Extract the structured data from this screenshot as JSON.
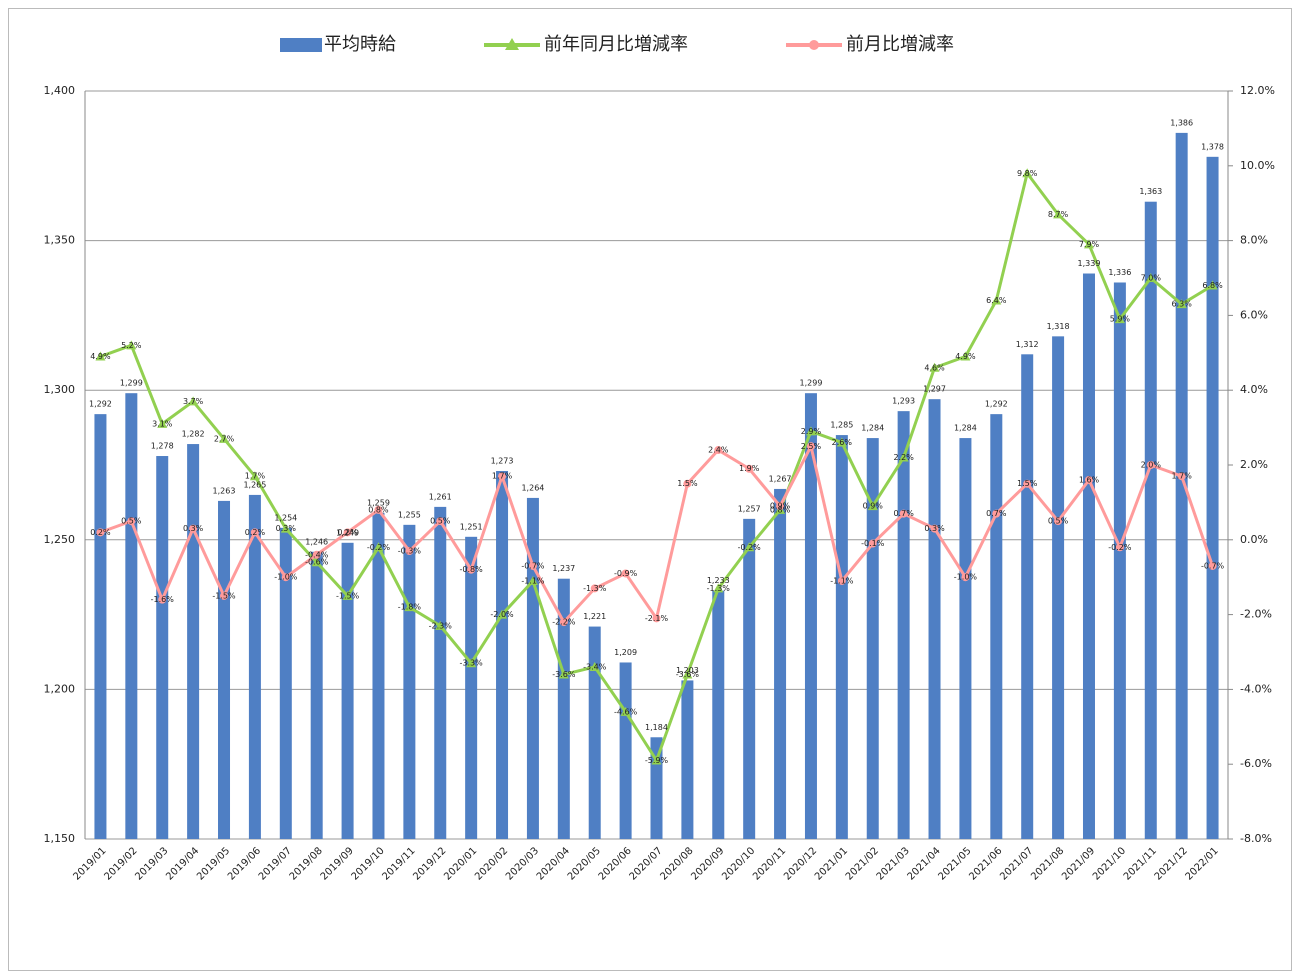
{
  "chart_data": {
    "type": "bar-line",
    "categories": [
      "2019/01",
      "2019/02",
      "2019/03",
      "2019/04",
      "2019/05",
      "2019/06",
      "2019/07",
      "2019/08",
      "2019/09",
      "2019/10",
      "2019/11",
      "2019/12",
      "2020/01",
      "2020/02",
      "2020/03",
      "2020/04",
      "2020/05",
      "2020/06",
      "2020/07",
      "2020/08",
      "2020/09",
      "2020/10",
      "2020/11",
      "2020/12",
      "2021/01",
      "2021/02",
      "2021/03",
      "2021/04",
      "2021/05",
      "2021/06",
      "2021/07",
      "2021/08",
      "2021/09",
      "2021/10",
      "2021/11",
      "2021/12",
      "2022/01"
    ],
    "series": [
      {
        "name": "平均時給",
        "type": "bar",
        "color": "#4f7fc4",
        "axis": "y",
        "values": [
          1292,
          1299,
          1278,
          1282,
          1263,
          1265,
          1254,
          1246,
          1249,
          1259,
          1255,
          1261,
          1251,
          1273,
          1264,
          1237,
          1221,
          1209,
          1184,
          1203,
          1233,
          1257,
          1267,
          1299,
          1285,
          1284,
          1293,
          1297,
          1284,
          1292,
          1312,
          1318,
          1339,
          1336,
          1363,
          1386,
          1378
        ],
        "value_labels": [
          "1,292",
          "1,299",
          "1,278",
          "1,282",
          "1,263",
          "1,265",
          "1,254",
          "1,246",
          "1,249",
          "1,259",
          "1,255",
          "1,261",
          "1,251",
          "1,273",
          "1,264",
          "1,237",
          "1,221",
          "1,209",
          "1,184",
          "1,203",
          "1,233",
          "1,257",
          "1,267",
          "1,299",
          "1,285",
          "1,284",
          "1,293",
          "1,297",
          "1,284",
          "1,292",
          "1,312",
          "1,318",
          "1,339",
          "1,336",
          "1,363",
          "1,386",
          "1,378"
        ]
      },
      {
        "name": "前年同月比増減率",
        "type": "line",
        "marker": "triangle",
        "color": "#92d050",
        "axis": "y2",
        "values": [
          4.9,
          5.2,
          3.1,
          3.7,
          2.7,
          1.7,
          0.3,
          -0.6,
          -1.5,
          -0.2,
          -1.8,
          -2.3,
          -3.3,
          -2.0,
          -1.1,
          -3.6,
          -3.4,
          -4.6,
          -5.9,
          -3.6,
          -1.3,
          -0.2,
          0.8,
          2.9,
          2.6,
          0.9,
          2.2,
          4.6,
          4.9,
          6.4,
          9.8,
          8.7,
          7.9,
          5.9,
          7.0,
          6.3,
          6.8
        ],
        "value_labels": [
          "4.9%",
          "5.2%",
          "3.1%",
          "3.7%",
          "2.7%",
          "1.7%",
          "0.3%",
          "-0.6%",
          "-1.5%",
          "-0.2%",
          "-1.8%",
          "-2.3%",
          "-3.3%",
          "-2.0%",
          "-1.1%",
          "-3.6%",
          "-3.4%",
          "-4.6%",
          "-5.9%",
          "-3.6%",
          "-1.3%",
          "-0.2%",
          "0.8%",
          "2.9%",
          "2.6%",
          "0.9%",
          "2.2%",
          "4.6%",
          "4.9%",
          "6.4%",
          "9.8%",
          "8.7%",
          "7.9%",
          "5.9%",
          "7.0%",
          "6.3%",
          "6.8%"
        ]
      },
      {
        "name": "前月比増減率",
        "type": "line",
        "marker": "circle",
        "color": "#ff9b9b",
        "axis": "y2",
        "values": [
          0.2,
          0.5,
          -1.6,
          0.3,
          -1.5,
          0.2,
          -1.0,
          -0.4,
          0.2,
          0.8,
          -0.3,
          0.5,
          -0.8,
          1.7,
          -0.7,
          -2.2,
          -1.3,
          -0.9,
          -2.1,
          1.5,
          2.4,
          1.9,
          0.9,
          2.5,
          -1.1,
          -0.1,
          0.7,
          0.3,
          -1.0,
          0.7,
          1.5,
          0.5,
          1.6,
          -0.2,
          2.0,
          1.7,
          -0.7
        ],
        "value_labels": [
          "0.2%",
          "0.5%",
          "-1.6%",
          "0.3%",
          "-1.5%",
          "0.2%",
          "-1.0%",
          "-0.4%",
          "0.2%",
          "0.8%",
          "-0.3%",
          "0.5%",
          "-0.8%",
          "1.7%",
          "-0.7%",
          "-2.2%",
          "-1.3%",
          "-0.9%",
          "-2.1%",
          "1.5%",
          "2.4%",
          "1.9%",
          "0.9%",
          "2.5%",
          "-1.1%",
          "-0.1%",
          "0.7%",
          "0.3%",
          "-1.0%",
          "0.7%",
          "1.5%",
          "0.5%",
          "1.6%",
          "-0.2%",
          "2.0%",
          "1.7%",
          "-0.7%"
        ]
      }
    ],
    "ylim": [
      1150,
      1400
    ],
    "yticks": [
      {
        "value": 1150,
        "label": "1,150"
      },
      {
        "value": 1200,
        "label": "1,200"
      },
      {
        "value": 1250,
        "label": "1,250"
      },
      {
        "value": 1300,
        "label": "1,300"
      },
      {
        "value": 1350,
        "label": "1,350"
      },
      {
        "value": 1400,
        "label": "1,400"
      }
    ],
    "y2lim": [
      -8,
      12
    ],
    "y2ticks": [
      {
        "value": -8,
        "label": "-8.0%"
      },
      {
        "value": -6,
        "label": "-6.0%"
      },
      {
        "value": -4,
        "label": "-4.0%"
      },
      {
        "value": -2,
        "label": "-2.0%"
      },
      {
        "value": 0,
        "label": "0.0%"
      },
      {
        "value": 2,
        "label": "2.0%"
      },
      {
        "value": 4,
        "label": "4.0%"
      },
      {
        "value": 6,
        "label": "6.0%"
      },
      {
        "value": 8,
        "label": "8.0%"
      },
      {
        "value": 10,
        "label": "10.0%"
      },
      {
        "value": 12,
        "label": "12.0%"
      }
    ],
    "grid": true,
    "legend": "top"
  }
}
